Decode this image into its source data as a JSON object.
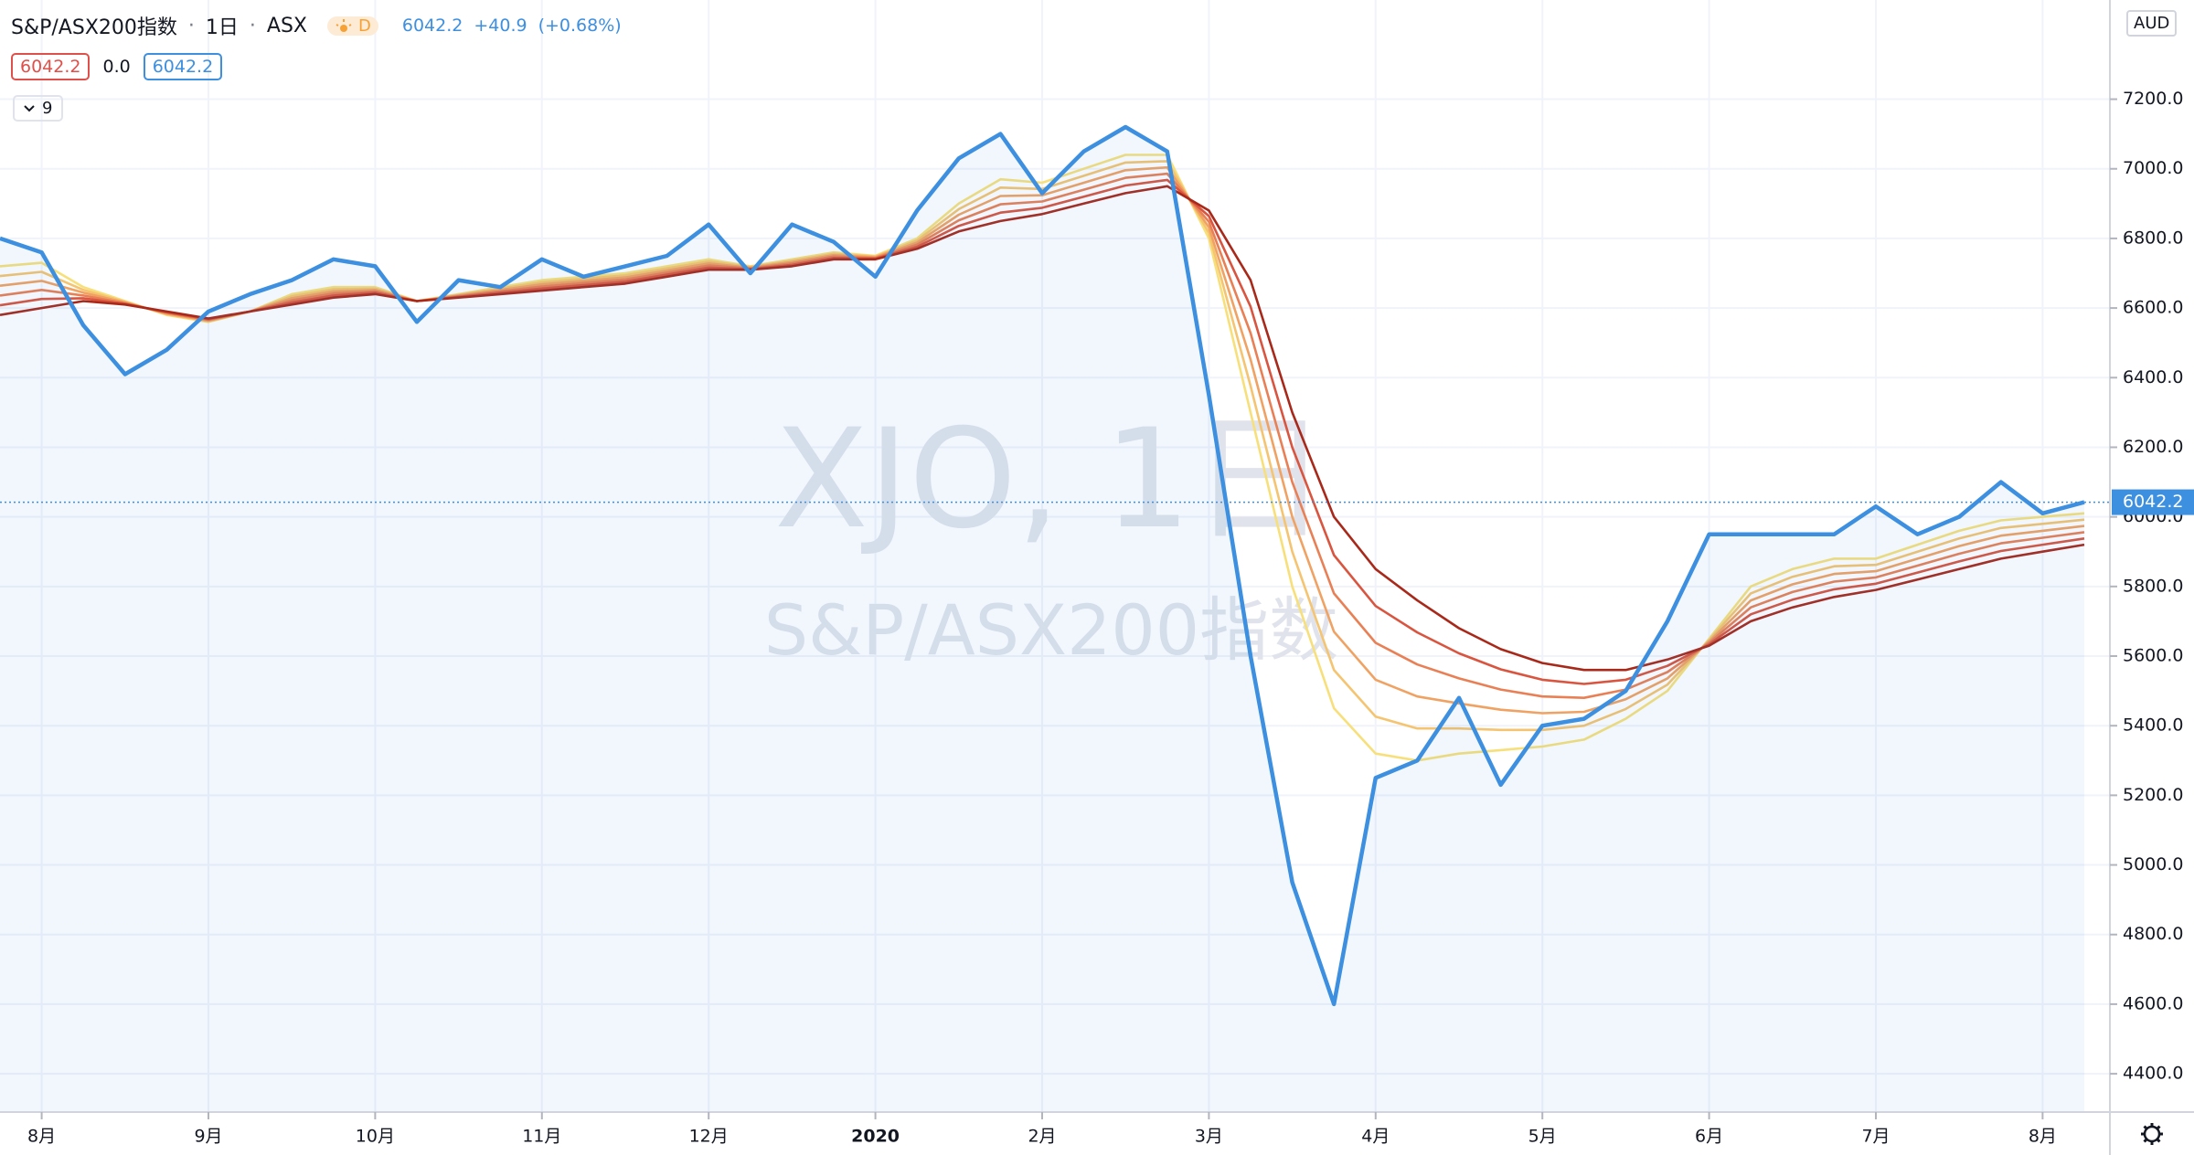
{
  "header": {
    "symbol": "S&P/ASX200指数",
    "separator": "·",
    "interval": "1日",
    "exchange": "ASX",
    "badge": "D",
    "price": "6042.2",
    "change": "+40.9",
    "change_pct": "(+0.68%)"
  },
  "indicator": {
    "values": [
      "6042.2",
      "0.0",
      "6042.2"
    ],
    "collapsed_count": "9"
  },
  "watermark": {
    "symbol": "XJO, 1日",
    "name": "S&P/ASX200指数"
  },
  "currency": "AUD",
  "chart_data": {
    "type": "line",
    "categories": [
      null,
      "8月",
      null,
      null,
      null,
      "9月",
      null,
      null,
      null,
      "10月",
      null,
      null,
      null,
      "11月",
      null,
      null,
      null,
      "12月",
      null,
      null,
      null,
      "2020",
      null,
      null,
      null,
      "2月",
      null,
      null,
      null,
      "3月",
      null,
      null,
      null,
      "4月",
      null,
      null,
      null,
      "5月",
      null,
      null,
      null,
      "6月",
      null,
      null,
      null,
      "7月",
      null,
      null,
      null,
      "8月",
      null
    ],
    "series": [
      {
        "color": "#f7e07a",
        "values": [
          6720,
          6730,
          6660,
          6620,
          6580,
          6560,
          6590,
          6640,
          6660,
          6660,
          6620,
          6640,
          6660,
          6680,
          6690,
          6700,
          6720,
          6740,
          6720,
          6740,
          6760,
          6750,
          6800,
          6900,
          6970,
          6960,
          7000,
          7040,
          7040,
          6800,
          6300,
          5800,
          5450,
          5320,
          5300,
          5320,
          5330,
          5340,
          5360,
          5420,
          5500,
          5650,
          5800,
          5850,
          5880,
          5880,
          5920,
          5960,
          5990,
          6000,
          6010
        ]
      },
      {
        "color": "#f5c470",
        "values": [
          6692,
          6704,
          6652,
          6618,
          6582,
          6562,
          6590,
          6634,
          6654,
          6656,
          6620,
          6638,
          6656,
          6674,
          6684,
          6694,
          6714,
          6734,
          6718,
          6736,
          6756,
          6748,
          6794,
          6884,
          6946,
          6942,
          6980,
          7018,
          7022,
          6816,
          6376,
          5900,
          5560,
          5426,
          5392,
          5392,
          5388,
          5388,
          5400,
          5448,
          5518,
          5646,
          5780,
          5828,
          5858,
          5862,
          5900,
          5938,
          5968,
          5980,
          5992
        ]
      },
      {
        "color": "#f0a262",
        "values": [
          6664,
          6678,
          6644,
          6616,
          6584,
          6564,
          6590,
          6628,
          6648,
          6652,
          6620,
          6636,
          6652,
          6668,
          6678,
          6688,
          6708,
          6728,
          6716,
          6732,
          6752,
          6746,
          6788,
          6868,
          6922,
          6924,
          6960,
          6996,
          7004,
          6832,
          6452,
          6000,
          5670,
          5532,
          5484,
          5464,
          5446,
          5436,
          5440,
          5476,
          5536,
          5642,
          5760,
          5806,
          5836,
          5844,
          5880,
          5916,
          5946,
          5960,
          5974
        ]
      },
      {
        "color": "#e98055",
        "values": [
          6636,
          6652,
          6636,
          6614,
          6586,
          6566,
          6590,
          6622,
          6642,
          6648,
          6620,
          6634,
          6648,
          6662,
          6672,
          6682,
          6702,
          6722,
          6714,
          6728,
          6748,
          6744,
          6782,
          6852,
          6898,
          6906,
          6940,
          6974,
          6986,
          6848,
          6528,
          6100,
          5780,
          5638,
          5576,
          5536,
          5504,
          5484,
          5480,
          5504,
          5554,
          5638,
          5740,
          5784,
          5814,
          5826,
          5860,
          5894,
          5924,
          5940,
          5956
        ]
      },
      {
        "color": "#d9553f",
        "values": [
          6608,
          6626,
          6628,
          6612,
          6588,
          6568,
          6590,
          6616,
          6636,
          6644,
          6620,
          6632,
          6644,
          6656,
          6666,
          6676,
          6696,
          6716,
          6712,
          6724,
          6744,
          6742,
          6776,
          6836,
          6874,
          6888,
          6920,
          6952,
          6968,
          6864,
          6604,
          6200,
          5890,
          5744,
          5668,
          5608,
          5562,
          5532,
          5520,
          5532,
          5572,
          5634,
          5720,
          5762,
          5792,
          5808,
          5840,
          5872,
          5902,
          5920,
          5938
        ]
      },
      {
        "color": "#a8291a",
        "values": [
          6580,
          6600,
          6620,
          6610,
          6590,
          6570,
          6590,
          6610,
          6630,
          6640,
          6620,
          6630,
          6640,
          6650,
          6660,
          6670,
          6690,
          6710,
          6710,
          6720,
          6740,
          6740,
          6770,
          6820,
          6850,
          6870,
          6900,
          6930,
          6950,
          6880,
          6680,
          6300,
          6000,
          5850,
          5760,
          5680,
          5620,
          5580,
          5560,
          5560,
          5590,
          5630,
          5700,
          5740,
          5770,
          5790,
          5820,
          5850,
          5880,
          5900,
          5920
        ]
      },
      {
        "color": "#3d8fe0",
        "values": [
          6800,
          6760,
          6550,
          6410,
          6480,
          6590,
          6640,
          6680,
          6740,
          6720,
          6560,
          6680,
          6660,
          6740,
          6690,
          6720,
          6750,
          6840,
          6700,
          6840,
          6790,
          6690,
          6880,
          7030,
          7100,
          6930,
          7050,
          7120,
          7050,
          6350,
          5600,
          4950,
          4600,
          5250,
          5300,
          5480,
          5230,
          5400,
          5420,
          5500,
          5700,
          5950,
          5950,
          5950,
          5950,
          6030,
          5950,
          6000,
          6100,
          6010,
          6042.2
        ]
      }
    ],
    "ylim": [
      4290,
      7485
    ],
    "yticks": [
      {
        "value": 4400,
        "label": "4400.0"
      },
      {
        "value": 4600,
        "label": "4600.0"
      },
      {
        "value": 4800,
        "label": "4800.0"
      },
      {
        "value": 5000,
        "label": "5000.0"
      },
      {
        "value": 5200,
        "label": "5200.0"
      },
      {
        "value": 5400,
        "label": "5400.0"
      },
      {
        "value": 5600,
        "label": "5600.0"
      },
      {
        "value": 5800,
        "label": "5800.0"
      },
      {
        "value": 6000,
        "label": "6000.0"
      },
      {
        "value": 6200,
        "label": "6200.0"
      },
      {
        "value": 6400,
        "label": "6400.0"
      },
      {
        "value": 6600,
        "label": "6600.0"
      },
      {
        "value": 6800,
        "label": "6800.0"
      },
      {
        "value": 7000,
        "label": "7000.0"
      },
      {
        "value": 7200,
        "label": "7200.0"
      }
    ],
    "grid": true,
    "last_price": 6042.2
  }
}
